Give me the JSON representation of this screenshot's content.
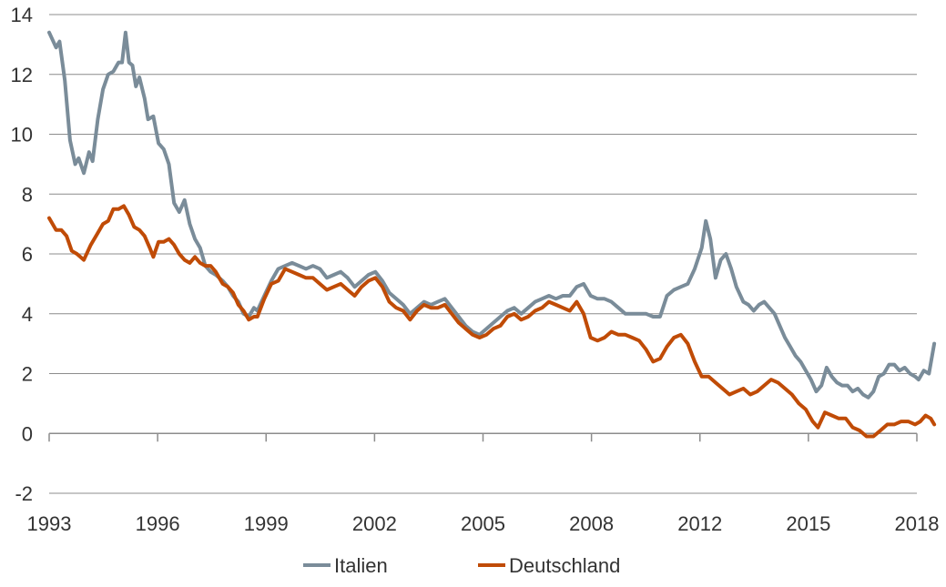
{
  "chart_data": {
    "type": "line",
    "title": "",
    "xlabel": "",
    "ylabel": "",
    "xlim": [
      1993,
      2018
    ],
    "ylim": [
      -2,
      14
    ],
    "y_ticks": [
      "14",
      "12",
      "10",
      "8",
      "6",
      "4",
      "2",
      "0",
      "-2"
    ],
    "x_ticks": [
      "1993",
      "1996",
      "1999",
      "2002",
      "2005",
      "2008",
      "2012",
      "2015",
      "2018"
    ],
    "grid": "horizontal",
    "legend_position": "bottom-center",
    "series": [
      {
        "name": "Italien",
        "color": "#7a8c99",
        "points": [
          [
            1993.0,
            13.4
          ],
          [
            1993.2,
            12.9
          ],
          [
            1993.3,
            13.1
          ],
          [
            1993.45,
            11.8
          ],
          [
            1993.6,
            9.8
          ],
          [
            1993.75,
            9.0
          ],
          [
            1993.85,
            9.2
          ],
          [
            1994.0,
            8.7
          ],
          [
            1994.15,
            9.4
          ],
          [
            1994.25,
            9.1
          ],
          [
            1994.4,
            10.5
          ],
          [
            1994.55,
            11.5
          ],
          [
            1994.7,
            12.0
          ],
          [
            1994.85,
            12.1
          ],
          [
            1995.0,
            12.4
          ],
          [
            1995.1,
            12.4
          ],
          [
            1995.2,
            13.4
          ],
          [
            1995.3,
            12.4
          ],
          [
            1995.4,
            12.3
          ],
          [
            1995.5,
            11.6
          ],
          [
            1995.6,
            11.9
          ],
          [
            1995.75,
            11.2
          ],
          [
            1995.85,
            10.5
          ],
          [
            1996.0,
            10.6
          ],
          [
            1996.15,
            9.7
          ],
          [
            1996.3,
            9.5
          ],
          [
            1996.45,
            9.0
          ],
          [
            1996.6,
            7.7
          ],
          [
            1996.75,
            7.4
          ],
          [
            1996.9,
            7.8
          ],
          [
            1997.05,
            7.0
          ],
          [
            1997.2,
            6.5
          ],
          [
            1997.35,
            6.2
          ],
          [
            1997.5,
            5.6
          ],
          [
            1997.65,
            5.4
          ],
          [
            1997.8,
            5.3
          ],
          [
            1998.0,
            5.1
          ],
          [
            1998.15,
            4.9
          ],
          [
            1998.3,
            4.6
          ],
          [
            1998.45,
            4.4
          ],
          [
            1998.6,
            4.0
          ],
          [
            1998.75,
            3.9
          ],
          [
            1998.9,
            4.2
          ],
          [
            1999.0,
            4.1
          ],
          [
            1999.2,
            4.6
          ],
          [
            1999.4,
            5.1
          ],
          [
            1999.6,
            5.5
          ],
          [
            1999.8,
            5.6
          ],
          [
            2000.0,
            5.7
          ],
          [
            2000.2,
            5.6
          ],
          [
            2000.4,
            5.5
          ],
          [
            2000.6,
            5.6
          ],
          [
            2000.8,
            5.5
          ],
          [
            2001.0,
            5.2
          ],
          [
            2001.2,
            5.3
          ],
          [
            2001.4,
            5.4
          ],
          [
            2001.6,
            5.2
          ],
          [
            2001.8,
            4.9
          ],
          [
            2002.0,
            5.1
          ],
          [
            2002.2,
            5.3
          ],
          [
            2002.4,
            5.4
          ],
          [
            2002.6,
            5.1
          ],
          [
            2002.8,
            4.7
          ],
          [
            2003.0,
            4.5
          ],
          [
            2003.2,
            4.3
          ],
          [
            2003.4,
            4.0
          ],
          [
            2003.6,
            4.2
          ],
          [
            2003.8,
            4.4
          ],
          [
            2004.0,
            4.3
          ],
          [
            2004.2,
            4.4
          ],
          [
            2004.4,
            4.5
          ],
          [
            2004.6,
            4.2
          ],
          [
            2004.8,
            3.9
          ],
          [
            2005.0,
            3.6
          ],
          [
            2005.2,
            3.4
          ],
          [
            2005.4,
            3.3
          ],
          [
            2005.6,
            3.5
          ],
          [
            2005.8,
            3.7
          ],
          [
            2006.0,
            3.9
          ],
          [
            2006.2,
            4.1
          ],
          [
            2006.4,
            4.2
          ],
          [
            2006.6,
            4.0
          ],
          [
            2006.8,
            4.2
          ],
          [
            2007.0,
            4.4
          ],
          [
            2007.2,
            4.5
          ],
          [
            2007.4,
            4.6
          ],
          [
            2007.6,
            4.5
          ],
          [
            2007.8,
            4.6
          ],
          [
            2008.0,
            4.6
          ],
          [
            2008.2,
            4.9
          ],
          [
            2008.4,
            5.0
          ],
          [
            2008.6,
            4.6
          ],
          [
            2008.8,
            4.5
          ],
          [
            2009.0,
            4.5
          ],
          [
            2009.2,
            4.4
          ],
          [
            2009.4,
            4.2
          ],
          [
            2009.6,
            4.0
          ],
          [
            2009.8,
            4.0
          ],
          [
            2010.0,
            4.0
          ],
          [
            2010.2,
            4.0
          ],
          [
            2010.4,
            3.9
          ],
          [
            2010.6,
            3.9
          ],
          [
            2010.8,
            4.6
          ],
          [
            2011.0,
            4.8
          ],
          [
            2011.2,
            4.9
          ],
          [
            2011.4,
            5.0
          ],
          [
            2011.6,
            5.5
          ],
          [
            2011.8,
            6.2
          ],
          [
            2011.92,
            7.1
          ],
          [
            2012.05,
            6.5
          ],
          [
            2012.2,
            5.2
          ],
          [
            2012.35,
            5.8
          ],
          [
            2012.5,
            6.0
          ],
          [
            2012.65,
            5.5
          ],
          [
            2012.8,
            4.9
          ],
          [
            2013.0,
            4.4
          ],
          [
            2013.15,
            4.3
          ],
          [
            2013.3,
            4.1
          ],
          [
            2013.45,
            4.3
          ],
          [
            2013.6,
            4.4
          ],
          [
            2013.75,
            4.2
          ],
          [
            2013.9,
            4.0
          ],
          [
            2014.05,
            3.6
          ],
          [
            2014.2,
            3.2
          ],
          [
            2014.35,
            2.9
          ],
          [
            2014.5,
            2.6
          ],
          [
            2014.65,
            2.4
          ],
          [
            2014.8,
            2.1
          ],
          [
            2014.95,
            1.8
          ],
          [
            2015.1,
            1.4
          ],
          [
            2015.25,
            1.6
          ],
          [
            2015.4,
            2.2
          ],
          [
            2015.55,
            1.9
          ],
          [
            2015.7,
            1.7
          ],
          [
            2015.85,
            1.6
          ],
          [
            2016.0,
            1.6
          ],
          [
            2016.15,
            1.4
          ],
          [
            2016.3,
            1.5
          ],
          [
            2016.45,
            1.3
          ],
          [
            2016.6,
            1.2
          ],
          [
            2016.75,
            1.4
          ],
          [
            2016.9,
            1.9
          ],
          [
            2017.05,
            2.0
          ],
          [
            2017.2,
            2.3
          ],
          [
            2017.35,
            2.3
          ],
          [
            2017.5,
            2.1
          ],
          [
            2017.65,
            2.2
          ],
          [
            2017.8,
            2.0
          ],
          [
            2017.95,
            1.9
          ],
          [
            2018.05,
            1.8
          ],
          [
            2018.2,
            2.1
          ],
          [
            2018.35,
            2.0
          ],
          [
            2018.5,
            3.0
          ]
        ]
      },
      {
        "name": "Deutschland",
        "color": "#c04b06",
        "points": [
          [
            1993.0,
            7.2
          ],
          [
            1993.2,
            6.8
          ],
          [
            1993.35,
            6.8
          ],
          [
            1993.5,
            6.6
          ],
          [
            1993.65,
            6.1
          ],
          [
            1993.8,
            6.0
          ],
          [
            1994.0,
            5.8
          ],
          [
            1994.2,
            6.3
          ],
          [
            1994.4,
            6.7
          ],
          [
            1994.55,
            7.0
          ],
          [
            1994.7,
            7.1
          ],
          [
            1994.85,
            7.5
          ],
          [
            1995.0,
            7.5
          ],
          [
            1995.15,
            7.6
          ],
          [
            1995.3,
            7.3
          ],
          [
            1995.45,
            6.9
          ],
          [
            1995.6,
            6.8
          ],
          [
            1995.75,
            6.6
          ],
          [
            1995.9,
            6.2
          ],
          [
            1996.0,
            5.9
          ],
          [
            1996.15,
            6.4
          ],
          [
            1996.3,
            6.4
          ],
          [
            1996.45,
            6.5
          ],
          [
            1996.6,
            6.3
          ],
          [
            1996.75,
            6.0
          ],
          [
            1996.9,
            5.8
          ],
          [
            1997.05,
            5.7
          ],
          [
            1997.2,
            5.9
          ],
          [
            1997.35,
            5.7
          ],
          [
            1997.5,
            5.6
          ],
          [
            1997.65,
            5.6
          ],
          [
            1997.8,
            5.4
          ],
          [
            1998.0,
            5.0
          ],
          [
            1998.15,
            4.9
          ],
          [
            1998.3,
            4.7
          ],
          [
            1998.45,
            4.3
          ],
          [
            1998.6,
            4.1
          ],
          [
            1998.75,
            3.8
          ],
          [
            1998.9,
            3.9
          ],
          [
            1999.0,
            3.9
          ],
          [
            1999.2,
            4.5
          ],
          [
            1999.4,
            5.0
          ],
          [
            1999.6,
            5.1
          ],
          [
            1999.8,
            5.5
          ],
          [
            2000.0,
            5.4
          ],
          [
            2000.2,
            5.3
          ],
          [
            2000.4,
            5.2
          ],
          [
            2000.6,
            5.2
          ],
          [
            2000.8,
            5.0
          ],
          [
            2001.0,
            4.8
          ],
          [
            2001.2,
            4.9
          ],
          [
            2001.4,
            5.0
          ],
          [
            2001.6,
            4.8
          ],
          [
            2001.8,
            4.6
          ],
          [
            2002.0,
            4.9
          ],
          [
            2002.2,
            5.1
          ],
          [
            2002.4,
            5.2
          ],
          [
            2002.6,
            4.9
          ],
          [
            2002.8,
            4.4
          ],
          [
            2003.0,
            4.2
          ],
          [
            2003.2,
            4.1
          ],
          [
            2003.4,
            3.8
          ],
          [
            2003.6,
            4.1
          ],
          [
            2003.8,
            4.3
          ],
          [
            2004.0,
            4.2
          ],
          [
            2004.2,
            4.2
          ],
          [
            2004.4,
            4.3
          ],
          [
            2004.6,
            4.0
          ],
          [
            2004.8,
            3.7
          ],
          [
            2005.0,
            3.5
          ],
          [
            2005.2,
            3.3
          ],
          [
            2005.4,
            3.2
          ],
          [
            2005.6,
            3.3
          ],
          [
            2005.8,
            3.5
          ],
          [
            2006.0,
            3.6
          ],
          [
            2006.2,
            3.9
          ],
          [
            2006.4,
            4.0
          ],
          [
            2006.6,
            3.8
          ],
          [
            2006.8,
            3.9
          ],
          [
            2007.0,
            4.1
          ],
          [
            2007.2,
            4.2
          ],
          [
            2007.4,
            4.4
          ],
          [
            2007.6,
            4.3
          ],
          [
            2007.8,
            4.2
          ],
          [
            2008.0,
            4.1
          ],
          [
            2008.2,
            4.4
          ],
          [
            2008.4,
            4.0
          ],
          [
            2008.6,
            3.2
          ],
          [
            2008.8,
            3.1
          ],
          [
            2009.0,
            3.2
          ],
          [
            2009.2,
            3.4
          ],
          [
            2009.4,
            3.3
          ],
          [
            2009.6,
            3.3
          ],
          [
            2009.8,
            3.2
          ],
          [
            2010.0,
            3.1
          ],
          [
            2010.2,
            2.8
          ],
          [
            2010.4,
            2.4
          ],
          [
            2010.6,
            2.5
          ],
          [
            2010.8,
            2.9
          ],
          [
            2011.0,
            3.2
          ],
          [
            2011.2,
            3.3
          ],
          [
            2011.4,
            3.0
          ],
          [
            2011.6,
            2.4
          ],
          [
            2011.8,
            1.9
          ],
          [
            2012.0,
            1.9
          ],
          [
            2012.2,
            1.7
          ],
          [
            2012.4,
            1.5
          ],
          [
            2012.6,
            1.3
          ],
          [
            2012.8,
            1.4
          ],
          [
            2013.0,
            1.5
          ],
          [
            2013.2,
            1.3
          ],
          [
            2013.4,
            1.4
          ],
          [
            2013.6,
            1.6
          ],
          [
            2013.8,
            1.8
          ],
          [
            2014.0,
            1.7
          ],
          [
            2014.2,
            1.5
          ],
          [
            2014.4,
            1.3
          ],
          [
            2014.6,
            1.0
          ],
          [
            2014.8,
            0.8
          ],
          [
            2015.0,
            0.4
          ],
          [
            2015.15,
            0.2
          ],
          [
            2015.35,
            0.7
          ],
          [
            2015.55,
            0.6
          ],
          [
            2015.75,
            0.5
          ],
          [
            2015.95,
            0.5
          ],
          [
            2016.15,
            0.2
          ],
          [
            2016.35,
            0.1
          ],
          [
            2016.55,
            -0.1
          ],
          [
            2016.75,
            -0.1
          ],
          [
            2016.95,
            0.1
          ],
          [
            2017.15,
            0.3
          ],
          [
            2017.35,
            0.3
          ],
          [
            2017.55,
            0.4
          ],
          [
            2017.75,
            0.4
          ],
          [
            2017.95,
            0.3
          ],
          [
            2018.1,
            0.4
          ],
          [
            2018.25,
            0.6
          ],
          [
            2018.4,
            0.5
          ],
          [
            2018.5,
            0.3
          ]
        ]
      }
    ]
  }
}
